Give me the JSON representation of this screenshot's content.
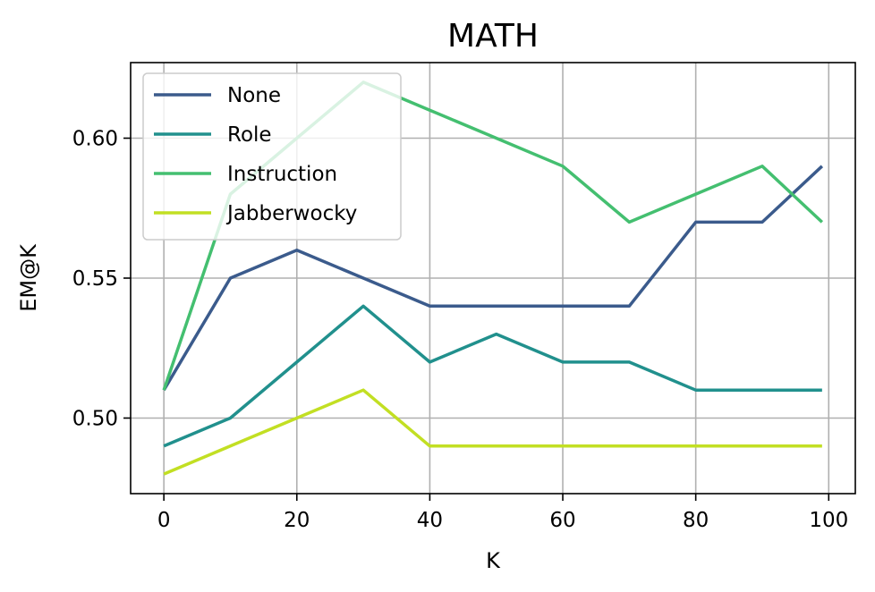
{
  "chart_data": {
    "type": "line",
    "title": "MATH",
    "xlabel": "K",
    "ylabel": "EM@K",
    "xlim": [
      -5,
      104
    ],
    "ylim": [
      0.473,
      0.627
    ],
    "xticks": [
      0,
      20,
      40,
      60,
      80,
      100
    ],
    "xtick_labels": [
      "0",
      "20",
      "40",
      "60",
      "80",
      "100"
    ],
    "yticks": [
      0.5,
      0.55,
      0.6
    ],
    "ytick_labels": [
      "0.50",
      "0.55",
      "0.60"
    ],
    "grid": true,
    "legend_position": "top-left",
    "x": [
      0,
      10,
      20,
      30,
      40,
      50,
      60,
      70,
      80,
      90,
      99
    ],
    "series": [
      {
        "name": "None",
        "color": "#3b5b8c",
        "values": [
          0.51,
          0.55,
          0.56,
          0.55,
          0.54,
          0.54,
          0.54,
          0.54,
          0.57,
          0.57,
          0.59
        ]
      },
      {
        "name": "Role",
        "color": "#21908d",
        "values": [
          0.49,
          0.5,
          0.52,
          0.54,
          0.52,
          0.53,
          0.52,
          0.52,
          0.51,
          0.51,
          0.51
        ]
      },
      {
        "name": "Instruction",
        "color": "#44bf70",
        "values": [
          0.51,
          0.58,
          0.6,
          0.62,
          0.61,
          0.6,
          0.59,
          0.57,
          0.58,
          0.59,
          0.57
        ]
      },
      {
        "name": "Jabberwocky",
        "color": "#c2df23",
        "values": [
          0.48,
          0.49,
          0.5,
          0.51,
          0.49,
          0.49,
          0.49,
          0.49,
          0.49,
          0.49,
          0.49
        ]
      }
    ]
  }
}
